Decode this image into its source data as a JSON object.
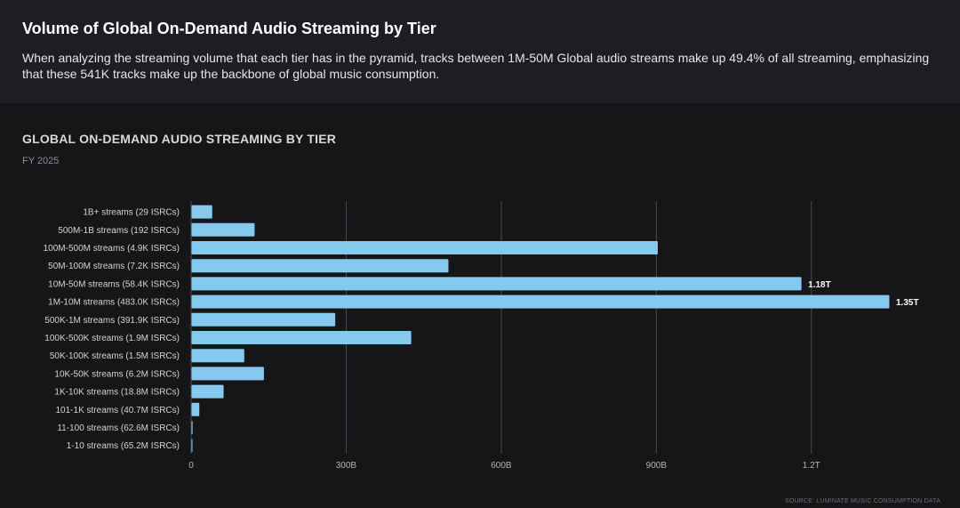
{
  "header": {
    "title": "Volume of Global On-Demand Audio Streaming by Tier",
    "description": "When analyzing the streaming volume that each tier has in the pyramid, tracks between 1M-50M Global audio streams make up 49.4% of all streaming, emphasizing that these 541K tracks make up the backbone of global music consumption."
  },
  "chart_data": {
    "type": "bar",
    "orientation": "horizontal",
    "title": "GLOBAL ON-DEMAND AUDIO STREAMING BY TIER",
    "subtitle": "FY 2025",
    "xlabel": "",
    "ylabel": "",
    "xlim": [
      0,
      1350
    ],
    "unit": "billions of streams",
    "x_ticks": [
      {
        "value": 0,
        "label": "0"
      },
      {
        "value": 300,
        "label": "300B"
      },
      {
        "value": 600,
        "label": "600B"
      },
      {
        "value": 900,
        "label": "900B"
      },
      {
        "value": 1200,
        "label": "1.2T"
      }
    ],
    "categories": [
      "1B+ streams (29 ISRCs)",
      "500M-1B streams (192 ISRCs)",
      "100M-500M streams (4.9K ISRCs)",
      "50M-100M streams (7.2K ISRCs)",
      "10M-50M streams (58.4K ISRCs)",
      "1M-10M streams (483.0K ISRCs)",
      "500K-1M streams (391.9K ISRCs)",
      "100K-500K streams (1.9M ISRCs)",
      "50K-100K streams (1.5M ISRCs)",
      "10K-50K streams (6.2M ISRCs)",
      "1K-10K streams (18.8M ISRCs)",
      "101-1K streams (40.7M ISRCs)",
      "11-100 streams (62.6M ISRCs)",
      "1-10 streams (65.2M ISRCs)"
    ],
    "values": [
      40,
      122,
      902,
      497,
      1180,
      1350,
      278,
      425,
      102,
      140,
      62,
      15,
      2,
      1
    ],
    "data_labels": [
      "",
      "",
      "",
      "",
      "1.18T",
      "1.35T",
      "",
      "",
      "",
      "",
      "",
      "",
      "",
      ""
    ],
    "bar_color": "#86c9ee",
    "grid": true,
    "source": "SOURCE: LUMINATE MUSIC CONSUMPTION DATA"
  }
}
